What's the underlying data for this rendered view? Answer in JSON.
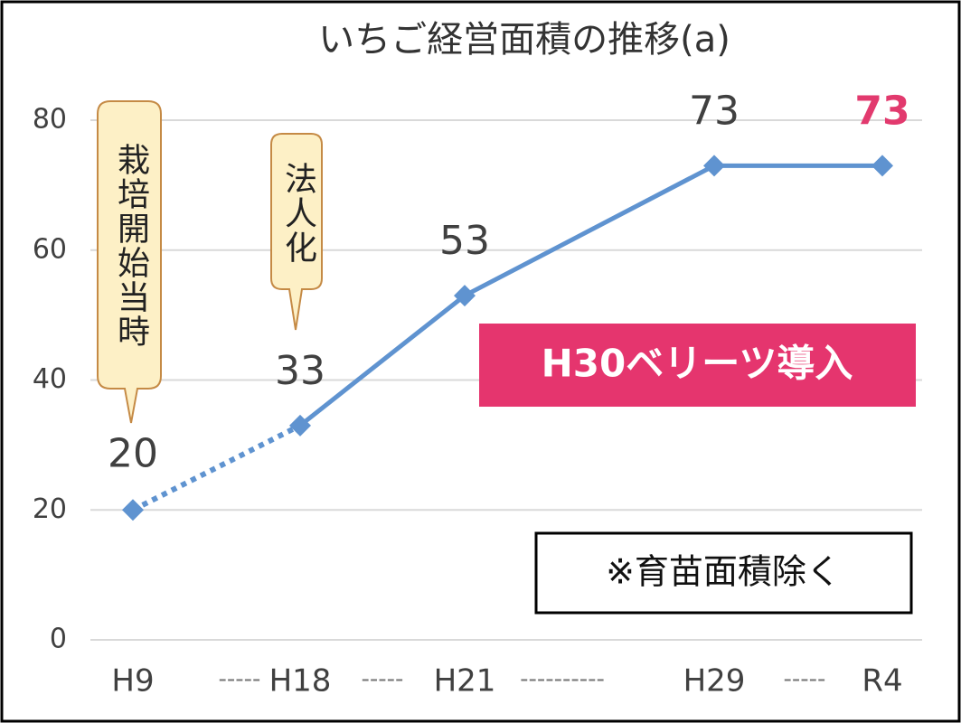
{
  "chart_data": {
    "type": "line",
    "title": "いちご経営面積の推移(a)",
    "categories": [
      "H9",
      "H18",
      "H21",
      "H29",
      "R4"
    ],
    "x_separators": [
      "-----",
      "-----",
      "----------",
      "-----"
    ],
    "series": [
      {
        "name": "いちご経営面積",
        "color": "#5f93d0",
        "values": [
          20,
          33,
          53,
          73,
          73
        ]
      }
    ],
    "segment_styles": [
      "dotted",
      "solid",
      "solid",
      "solid"
    ],
    "highlight_last_label_color": "#e23a6e",
    "ylim": [
      0,
      80
    ],
    "yticks": [
      0,
      20,
      40,
      60,
      80
    ],
    "grid": true,
    "annotations": {
      "start": "栽培開始当時",
      "incorporation": "法人化",
      "introduction": "H30ベリーツ導入",
      "note": "※育苗面積除く"
    }
  }
}
